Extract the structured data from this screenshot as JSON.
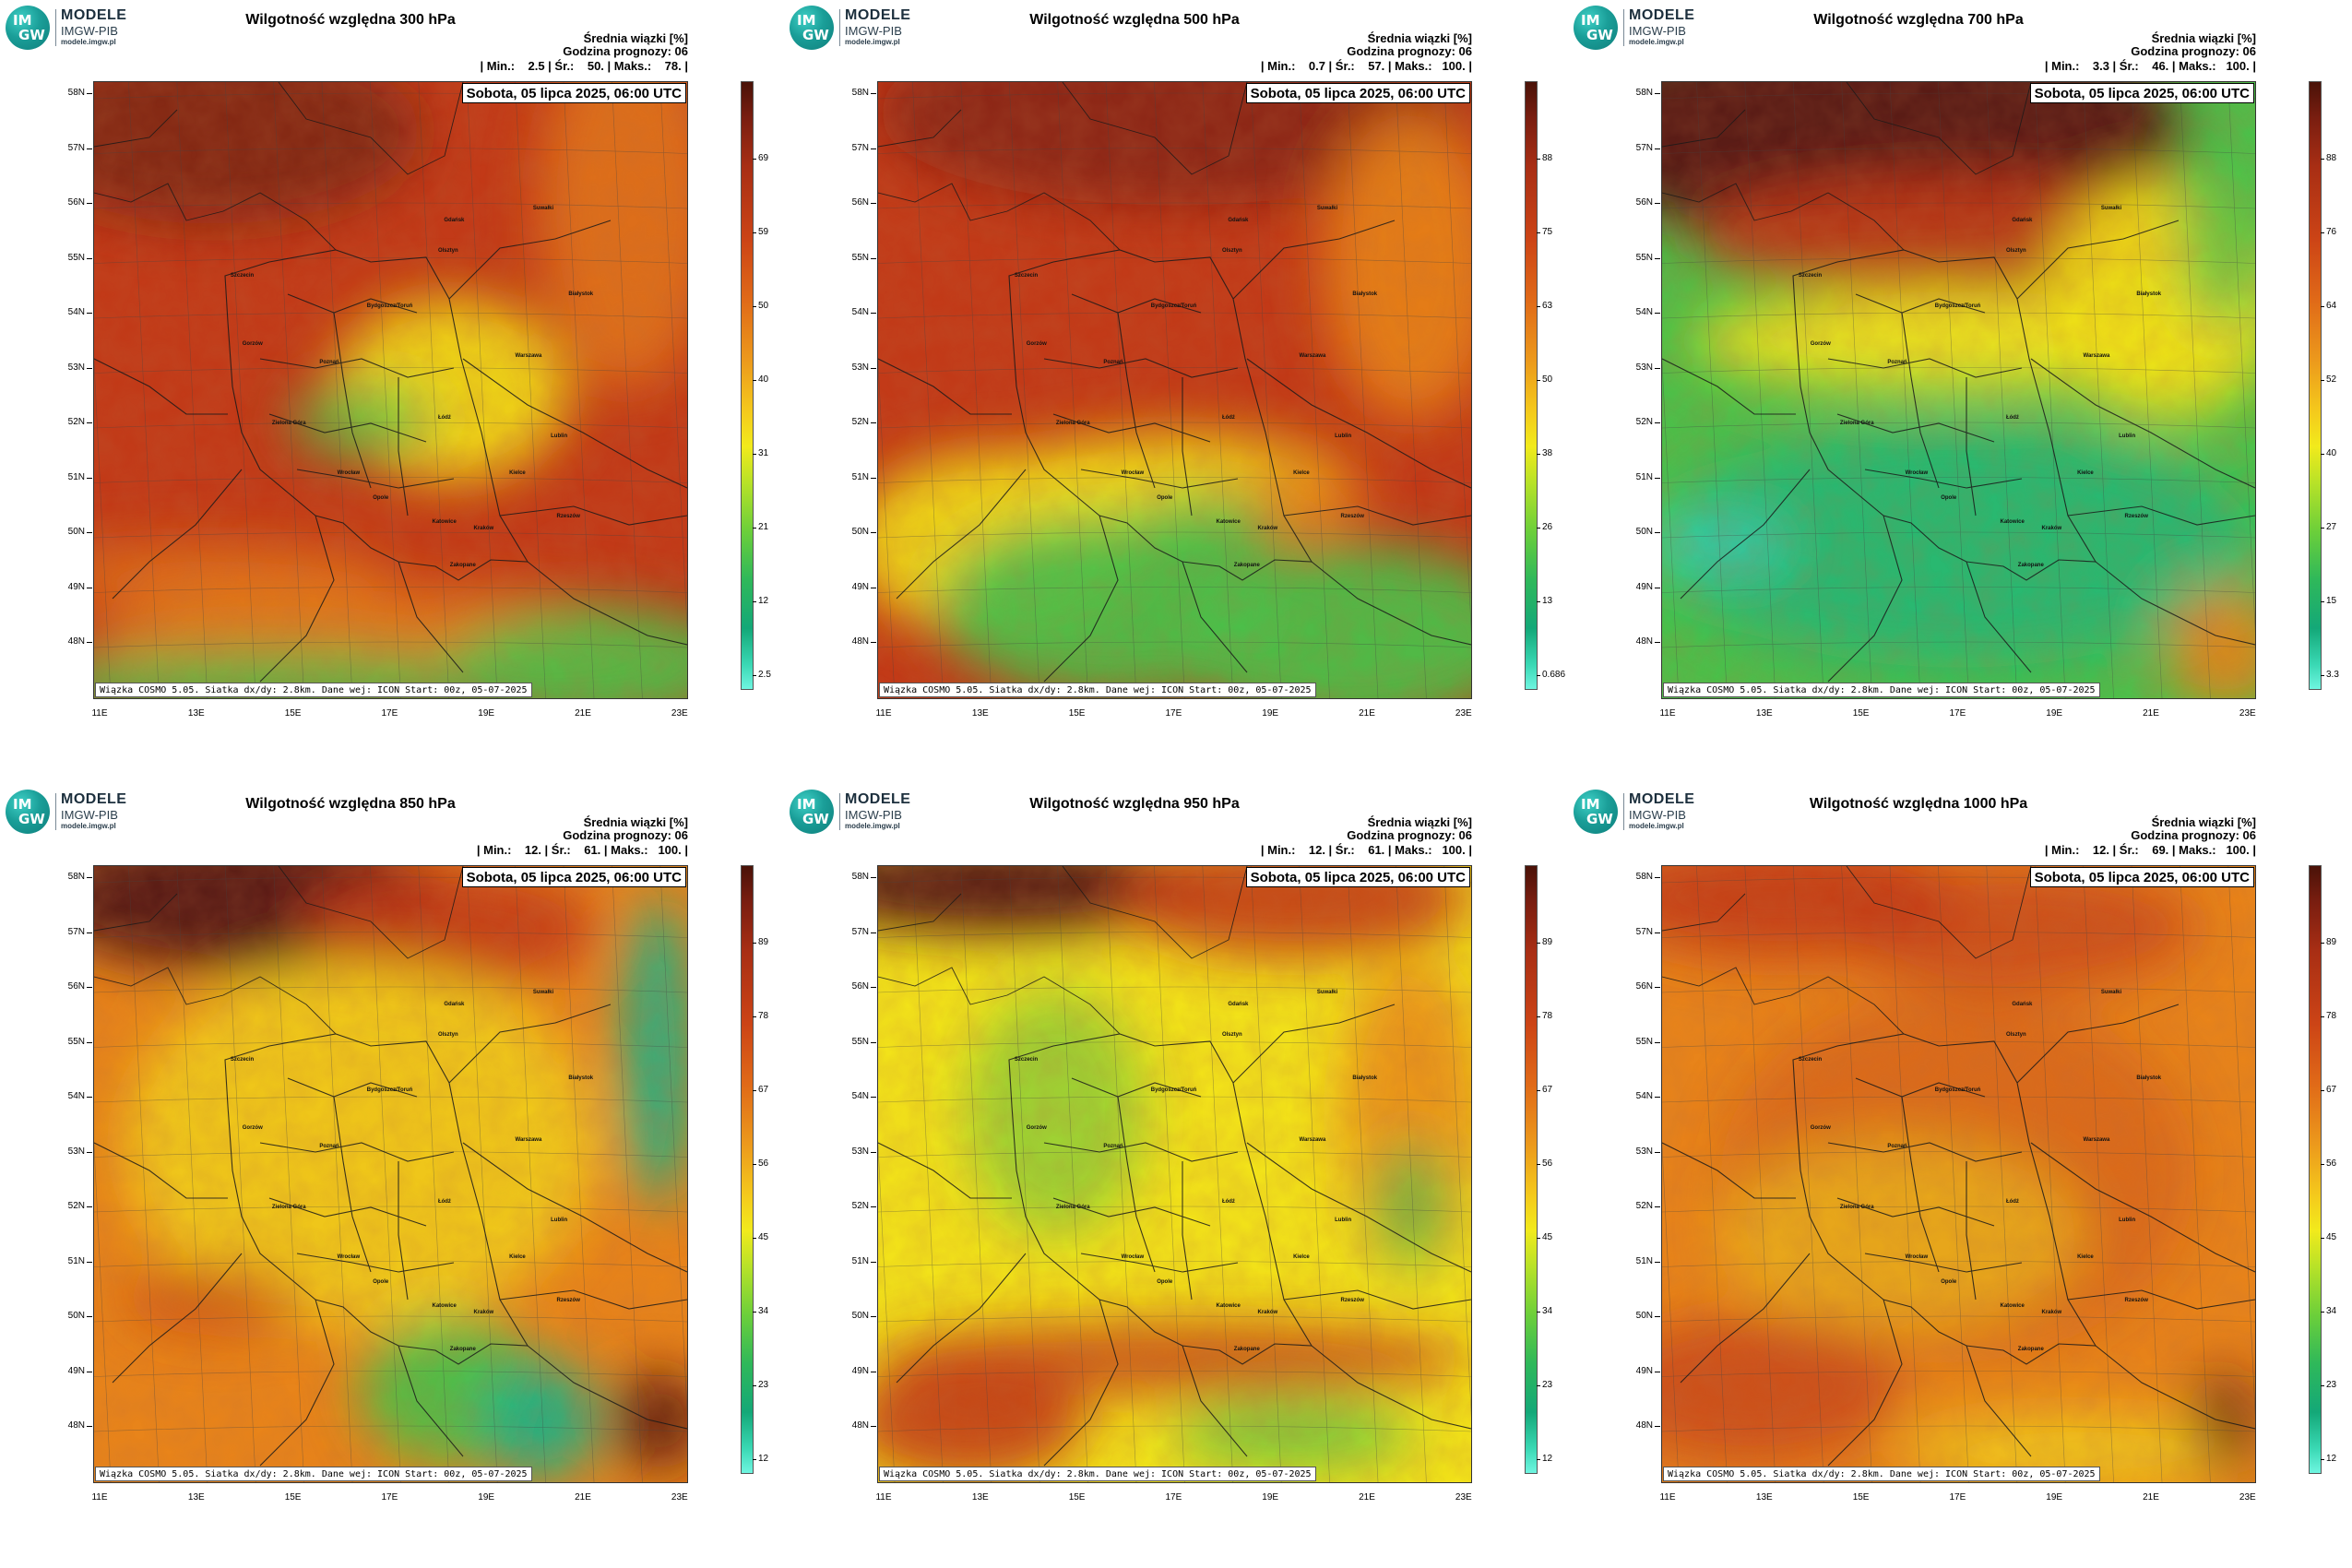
{
  "logo": {
    "circle_top": "IM",
    "circle_bottom": "GW",
    "line1": "MODELE",
    "line2": "IMGW-PIB",
    "line3": "modele.imgw.pl"
  },
  "common": {
    "subtitle": "Średnia wiązki [%]",
    "forecast_hour": "Godzina prognozy: 06",
    "date": "Sobota, 05 lipca 2025, 06:00 UTC",
    "footer": "Wiązka COSMO 5.05. Siatka dx/dy: 2.8km. Dane wej: ICON Start: 00z, 05-07-2025",
    "lat_ticks": [
      "58N",
      "57N",
      "56N",
      "55N",
      "54N",
      "53N",
      "52N",
      "51N",
      "50N",
      "49N",
      "48N"
    ],
    "lon_ticks": [
      "11E",
      "13E",
      "15E",
      "17E",
      "19E",
      "21E",
      "23E"
    ],
    "cities": [
      "Gdańsk",
      "Olsztyn",
      "Suwałki",
      "Szczecin",
      "Bydgoszcz/Toruń",
      "Białystok",
      "Gorzów",
      "Poznań",
      "Warszawa",
      "Zielona Góra",
      "Łódź",
      "Lublin",
      "Wrocław",
      "Kielce",
      "Opole",
      "Katowice",
      "Kraków",
      "Rzeszów",
      "Zakopane"
    ]
  },
  "panels": [
    {
      "title": "Wilgotność względna 300 hPa",
      "stats": "| Min.:    2.5 | Śr.:    50. | Maks.:    78. |",
      "colorbar": [
        "69",
        "59",
        "50",
        "40",
        "31",
        "21",
        "12",
        "2.5"
      ]
    },
    {
      "title": "Wilgotność względna 500 hPa",
      "stats": "| Min.:    0.7 | Śr.:    57. | Maks.:   100. |",
      "colorbar": [
        "88",
        "75",
        "63",
        "50",
        "38",
        "26",
        "13",
        "0.686"
      ]
    },
    {
      "title": "Wilgotność względna 700 hPa",
      "stats": "| Min.:    3.3 | Śr.:    46. | Maks.:   100. |",
      "colorbar": [
        "88",
        "76",
        "64",
        "52",
        "40",
        "27",
        "15",
        "3.3"
      ]
    },
    {
      "title": "Wilgotność względna 850 hPa",
      "stats": "| Min.:    12. | Śr.:    61. | Maks.:   100. |",
      "colorbar": [
        "89",
        "78",
        "67",
        "56",
        "45",
        "34",
        "23",
        "12"
      ]
    },
    {
      "title": "Wilgotność względna 950 hPa",
      "stats": "| Min.:    12. | Śr.:    61. | Maks.:   100. |",
      "colorbar": [
        "89",
        "78",
        "67",
        "56",
        "45",
        "34",
        "23",
        "12"
      ]
    },
    {
      "title": "Wilgotność względna 1000 hPa",
      "stats": "| Min.:    12. | Śr.:    69. | Maks.:   100. |",
      "colorbar": [
        "89",
        "78",
        "67",
        "56",
        "45",
        "34",
        "23",
        "12"
      ]
    }
  ],
  "colors": {
    "dark": "#5a1a12",
    "red": "#c23a18",
    "orange": "#e8841a",
    "yellow": "#f2e21a",
    "green": "#4cc04a",
    "teal": "#18b28a",
    "cyan": "#5ef0da"
  }
}
